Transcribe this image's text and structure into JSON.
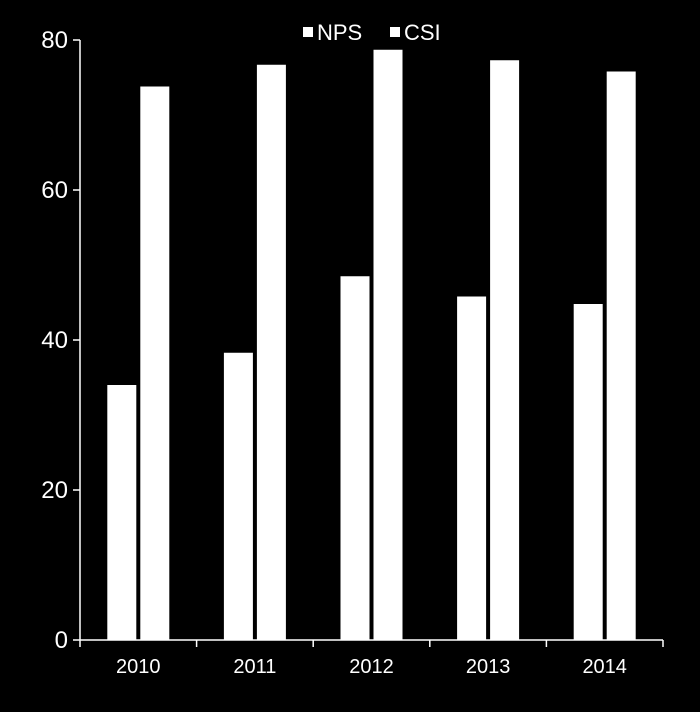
{
  "chart_data": {
    "type": "bar",
    "categories": [
      "2010",
      "2011",
      "2012",
      "2013",
      "2014"
    ],
    "series": [
      {
        "name": "NPS",
        "values": [
          34,
          38.3,
          48.5,
          45.8,
          44.8
        ]
      },
      {
        "name": "CSI",
        "values": [
          73.8,
          76.7,
          78.7,
          77.3,
          75.8
        ]
      }
    ],
    "ylim": [
      0,
      80
    ],
    "yticks": [
      "0",
      "20",
      "40",
      "60",
      "80"
    ],
    "legend_position": "top-center",
    "grid": false,
    "colors": {
      "background": "#000000",
      "bars": "#ffffff",
      "axis": "#ffffff",
      "text": "#ffffff"
    }
  }
}
